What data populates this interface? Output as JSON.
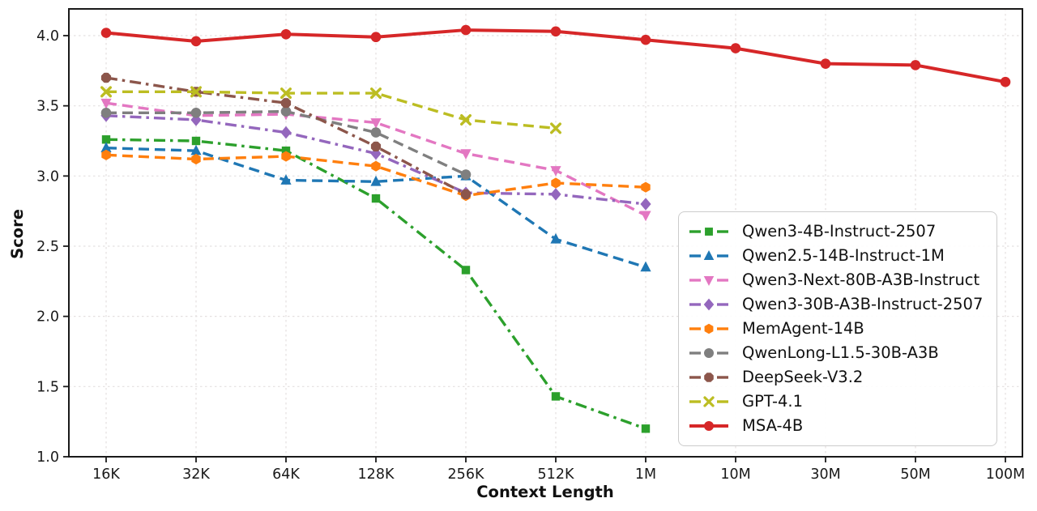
{
  "chart_data": {
    "type": "line",
    "title": "",
    "xlabel": "Context Length",
    "ylabel": "Score",
    "categories": [
      "16K",
      "32K",
      "64K",
      "128K",
      "256K",
      "512K",
      "1M",
      "10M",
      "30M",
      "50M",
      "100M"
    ],
    "yticks": [
      "1.0",
      "1.5",
      "2.0",
      "2.5",
      "3.0",
      "3.5",
      "4.0"
    ],
    "ylim": [
      1.0,
      4.19
    ],
    "grid": true,
    "grid_style": "dotted",
    "legend_position": "inside lower right",
    "series": [
      {
        "name": "Qwen3-4B-Instruct-2507",
        "color": "#2ca02c",
        "marker": "square",
        "line": "dashdot",
        "linewidth": 3.4,
        "values": [
          3.26,
          3.25,
          3.18,
          2.84,
          2.33,
          1.43,
          1.2,
          null,
          null,
          null,
          null
        ]
      },
      {
        "name": "Qwen2.5-14B-Instruct-1M",
        "color": "#1f77b4",
        "marker": "triangle-up",
        "line": "dashed",
        "linewidth": 3.4,
        "values": [
          3.2,
          3.18,
          2.97,
          2.96,
          3.0,
          2.55,
          2.35,
          null,
          null,
          null,
          null
        ]
      },
      {
        "name": "Qwen3-Next-80B-A3B-Instruct",
        "color": "#e377c2",
        "marker": "triangle-down",
        "line": "dashed",
        "linewidth": 3.4,
        "values": [
          3.52,
          3.43,
          3.44,
          3.38,
          3.16,
          3.04,
          2.72,
          null,
          null,
          null,
          null
        ]
      },
      {
        "name": "Qwen3-30B-A3B-Instruct-2507",
        "color": "#9467bd",
        "marker": "diamond",
        "line": "dashdot",
        "linewidth": 3.4,
        "values": [
          3.43,
          3.4,
          3.31,
          3.16,
          2.88,
          2.87,
          2.8,
          null,
          null,
          null,
          null
        ]
      },
      {
        "name": "MemAgent-14B",
        "color": "#ff7f0e",
        "marker": "hexagon",
        "line": "dashed",
        "linewidth": 3.4,
        "values": [
          3.15,
          3.12,
          3.14,
          3.07,
          2.86,
          2.95,
          2.92,
          null,
          null,
          null,
          null
        ]
      },
      {
        "name": "QwenLong-L1.5-30B-A3B",
        "color": "#7f7f7f",
        "marker": "circle",
        "line": "dashed",
        "linewidth": 3.4,
        "values": [
          3.45,
          3.45,
          3.46,
          3.31,
          3.01,
          null,
          null,
          null,
          null,
          null,
          null
        ]
      },
      {
        "name": "DeepSeek-V3.2",
        "color": "#8c564b",
        "marker": "octagon",
        "line": "dashdot",
        "linewidth": 3.4,
        "values": [
          3.7,
          3.6,
          3.52,
          3.21,
          2.87,
          null,
          null,
          null,
          null,
          null,
          null
        ]
      },
      {
        "name": "GPT-4.1",
        "color": "#bcbd22",
        "marker": "x",
        "line": "dashed",
        "linewidth": 3.4,
        "values": [
          3.6,
          3.6,
          3.59,
          3.59,
          3.4,
          3.34,
          null,
          null,
          null,
          null,
          null
        ]
      },
      {
        "name": "MSA-4B",
        "color": "#d62728",
        "marker": "circle",
        "line": "solid",
        "linewidth": 4.0,
        "values": [
          4.02,
          3.96,
          4.01,
          3.99,
          4.04,
          4.03,
          3.97,
          3.91,
          3.8,
          3.79,
          3.67
        ]
      }
    ]
  }
}
